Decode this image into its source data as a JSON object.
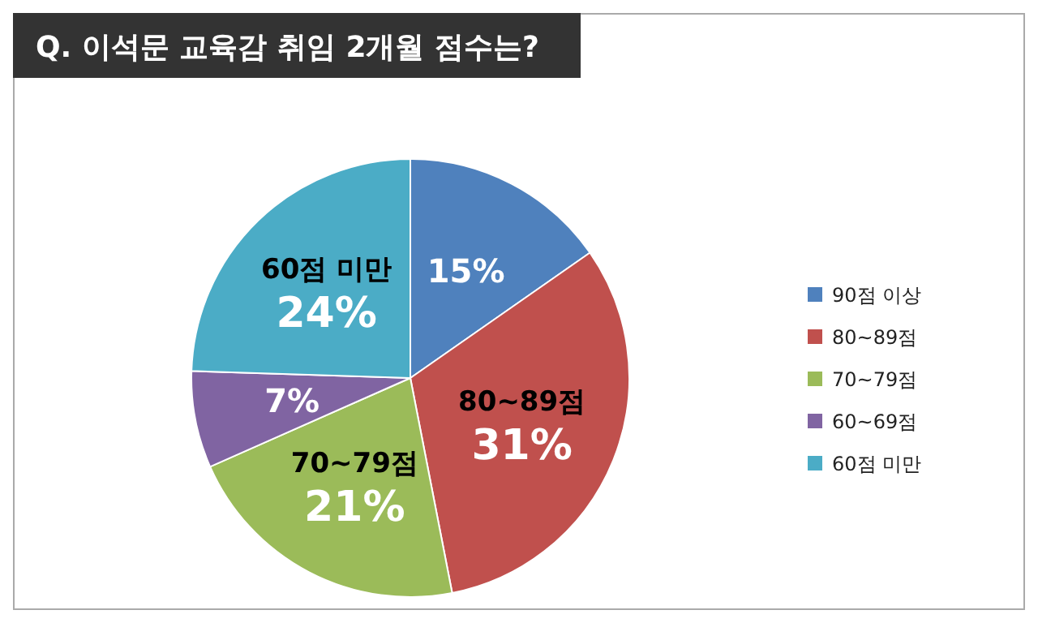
{
  "chart_data": {
    "type": "pie",
    "title": "Q. 이석문 교육감 취임 2개월 점수는?",
    "categories": [
      "90점 이상",
      "80~89점",
      "70~79점",
      "60~69점",
      "60점 미만"
    ],
    "values": [
      15,
      31,
      21,
      7,
      24
    ],
    "colors": [
      "#4f81bd",
      "#c0504d",
      "#9bbb59",
      "#8064a2",
      "#4bacc6"
    ],
    "value_labels": [
      "15%",
      "80~89점\n31%",
      "70~79점\n21%",
      "7%",
      "60점 미만\n24%"
    ],
    "legend": "right"
  }
}
